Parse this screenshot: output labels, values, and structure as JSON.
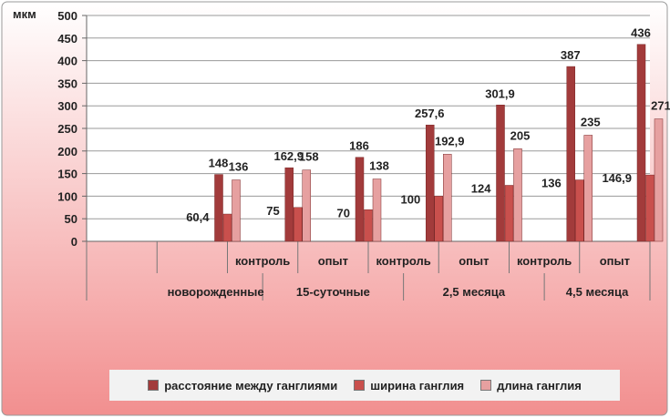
{
  "chart_data": {
    "type": "bar",
    "unit_label": "мкм",
    "ylim": [
      0,
      500
    ],
    "yticks": [
      "0",
      "50",
      "100",
      "150",
      "200",
      "250",
      "300",
      "350",
      "400",
      "450",
      "500"
    ],
    "groups": [
      "новорожденные",
      "15-суточные",
      "2,5 месяца",
      "4,5 месяца"
    ],
    "subcategories": [
      "",
      "контроль",
      "опыт",
      "контроль",
      "опыт",
      "контроль",
      "опыт"
    ],
    "series": [
      {
        "name": "расстояние между ганглиями",
        "color": "#a23b3b",
        "values": [
          148,
          162.9,
          186,
          257.6,
          301.9,
          387,
          436
        ]
      },
      {
        "name": "ширина ганглия",
        "color": "#c9504d",
        "values": [
          60.4,
          75,
          70,
          100,
          124,
          136,
          146.9
        ]
      },
      {
        "name": "длина ганглия",
        "color": "#e6a0a0",
        "values": [
          136,
          158,
          138,
          192.9,
          205,
          235,
          271
        ]
      }
    ],
    "data_labels": [
      [
        "148",
        "162,9",
        "186",
        "257,6",
        "301,9",
        "387",
        "436"
      ],
      [
        "60,4",
        "75",
        "70",
        "100",
        "124",
        "136",
        "146,9"
      ],
      [
        "136",
        "158",
        "138",
        "192,9",
        "205",
        "235",
        "271"
      ]
    ]
  }
}
